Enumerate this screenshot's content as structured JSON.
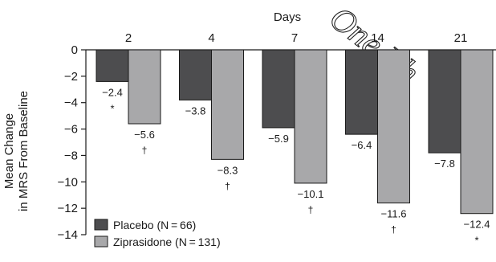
{
  "chart_data": {
    "type": "bar",
    "xlabel": "Days",
    "ylabel_lines": [
      "Mean Change",
      "in MRS From Baseline"
    ],
    "categories": [
      "2",
      "4",
      "7",
      "14",
      "21"
    ],
    "ylim": [
      -14,
      0
    ],
    "yticks": [
      "0",
      "−2",
      "−4",
      "−6",
      "−8",
      "−10",
      "−12",
      "−14"
    ],
    "ytick_values": [
      0,
      -2,
      -4,
      -6,
      -8,
      -10,
      -12,
      -14
    ],
    "grid": false,
    "legend_position": "bottom-left",
    "series": [
      {
        "name": "Placebo (N = 66)",
        "color": "#4d4d4f",
        "values": [
          -2.4,
          -3.8,
          -5.9,
          -6.4,
          -7.8
        ],
        "value_labels": [
          "−2.4",
          "−3.8",
          "−5.9",
          "−6.4",
          "−7.8"
        ],
        "markers": [
          "*",
          "",
          "",
          "",
          ""
        ]
      },
      {
        "name": "Ziprasidone (N = 131)",
        "color": "#a8a8aa",
        "values": [
          -5.6,
          -8.3,
          -10.1,
          -11.6,
          -12.4
        ],
        "value_labels": [
          "−5.6",
          "−8.3",
          "−10.1",
          "−11.6",
          "−12.4"
        ],
        "markers": [
          "†",
          "†",
          "†",
          "†",
          "*"
        ]
      }
    ],
    "watermark": "One Ph"
  }
}
